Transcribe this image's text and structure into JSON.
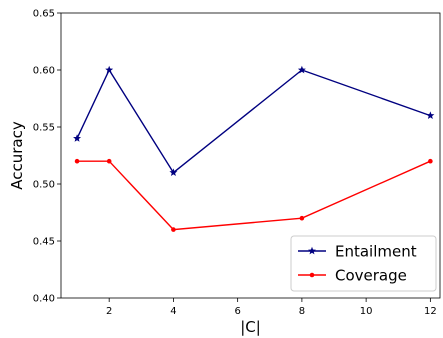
{
  "chart_data": {
    "type": "line",
    "title": "",
    "xlabel": "|C|",
    "ylabel": "Accuracy",
    "x": [
      1,
      2,
      4,
      8,
      12
    ],
    "xlim": [
      0.5,
      12.3
    ],
    "ylim": [
      0.4,
      0.65
    ],
    "xticks": [
      2,
      4,
      6,
      8,
      10,
      12
    ],
    "xtick_labels": [
      "2",
      "4",
      "6",
      "8",
      "10",
      "12"
    ],
    "yticks": [
      0.4,
      0.45,
      0.5,
      0.55,
      0.6,
      0.65
    ],
    "ytick_labels": [
      "0.40",
      "0.45",
      "0.50",
      "0.55",
      "0.60",
      "0.65"
    ],
    "grid": false,
    "legend_position": "bottom-right",
    "series": [
      {
        "name": "Entailment",
        "values": [
          0.54,
          0.6,
          0.51,
          0.6,
          0.56
        ],
        "color": "#000080",
        "marker": "star"
      },
      {
        "name": "Coverage",
        "values": [
          0.52,
          0.52,
          0.46,
          0.47,
          0.52
        ],
        "color": "#ff0000",
        "marker": "circle"
      }
    ]
  }
}
